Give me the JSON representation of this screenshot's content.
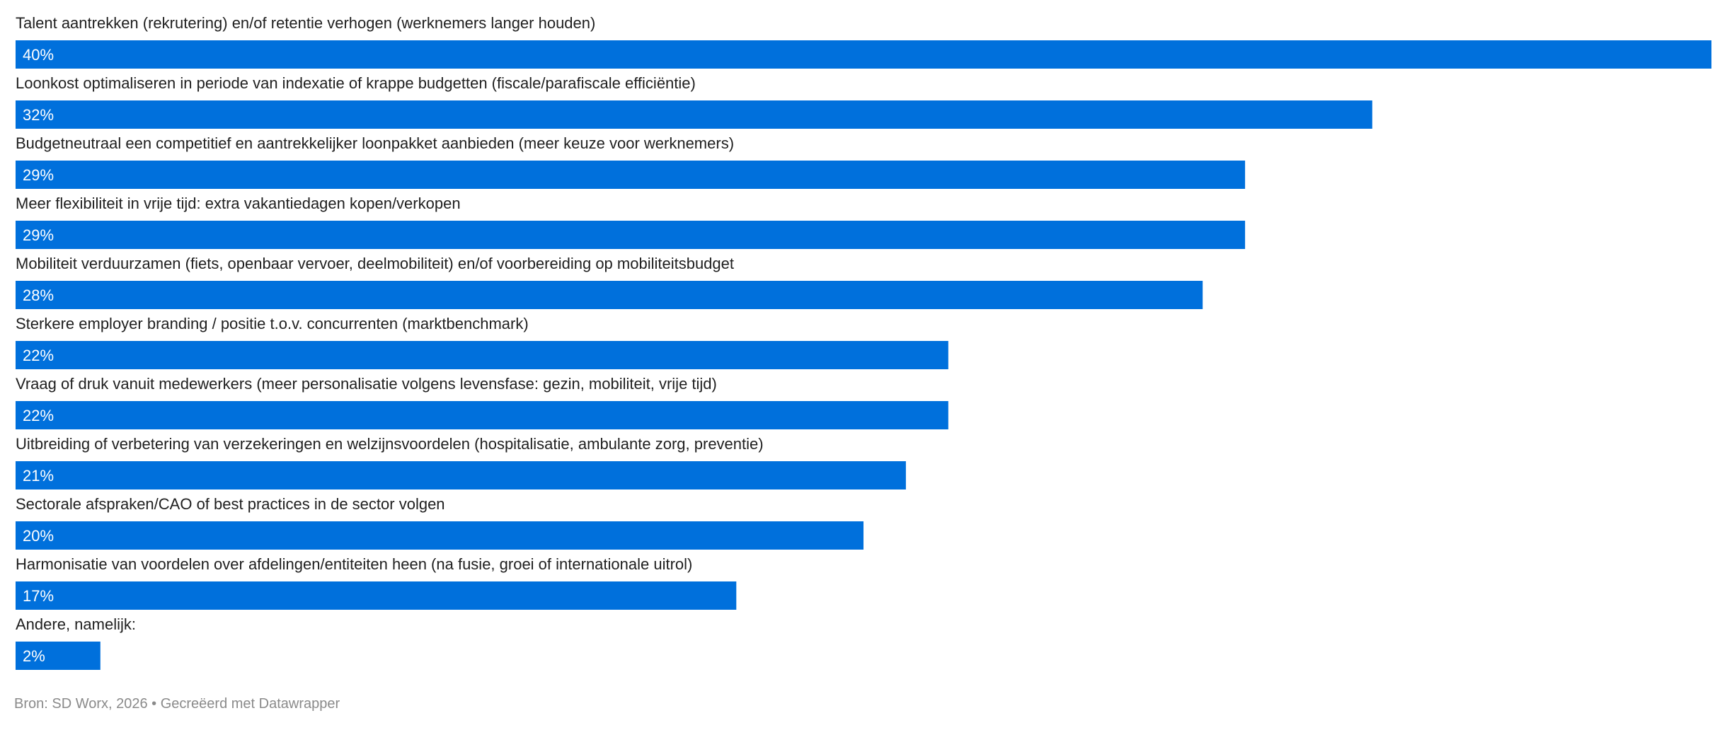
{
  "chart_data": {
    "type": "bar",
    "orientation": "horizontal",
    "categories": [
      "Talent aantrekken (rekrutering) en/of retentie verhogen (werknemers langer houden)",
      "Loonkost optimaliseren in periode van indexatie of krappe budgetten (fiscale/parafiscale efficiëntie)",
      "Budgetneutraal een competitief en aantrekkelijker loonpakket aanbieden (meer keuze voor werknemers)",
      "Meer flexibiliteit in vrije tijd: extra vakantiedagen kopen/verkopen",
      "Mobiliteit verduurzamen (fiets, openbaar vervoer, deelmobiliteit) en/of voorbereiding op mobiliteitsbudget",
      "Sterkere employer branding / positie t.o.v. concurrenten (marktbenchmark)",
      "Vraag of druk vanuit medewerkers (meer personalisatie volgens levensfase: gezin, mobiliteit, vrije tijd)",
      "Uitbreiding of verbetering van verzekeringen en welzijnsvoordelen (hospitalisatie, ambulante zorg, preventie)",
      "Sectorale afspraken/CAO of best practices in de sector volgen",
      "Harmonisatie van voordelen over afdelingen/entiteiten heen (na fusie, groei of internationale uitrol)",
      "Andere, namelijk:"
    ],
    "values": [
      40,
      32,
      29,
      29,
      28,
      22,
      22,
      21,
      20,
      17,
      2
    ],
    "value_labels": [
      "40%",
      "32%",
      "29%",
      "29%",
      "28%",
      "22%",
      "22%",
      "21%",
      "20%",
      "17%",
      "2%"
    ],
    "unit": "%",
    "xlim": [
      0,
      40
    ],
    "grid": false,
    "legend": "none",
    "bar_color": "#0070dc"
  },
  "footer": {
    "source": "Bron: SD Worx, 2026 • Gecreëerd met Datawrapper"
  },
  "colors": {
    "bar": "#0070dc",
    "label_text": "#1f1f1f",
    "value_text": "#ffffff",
    "footer_text": "#8a8a8a"
  }
}
